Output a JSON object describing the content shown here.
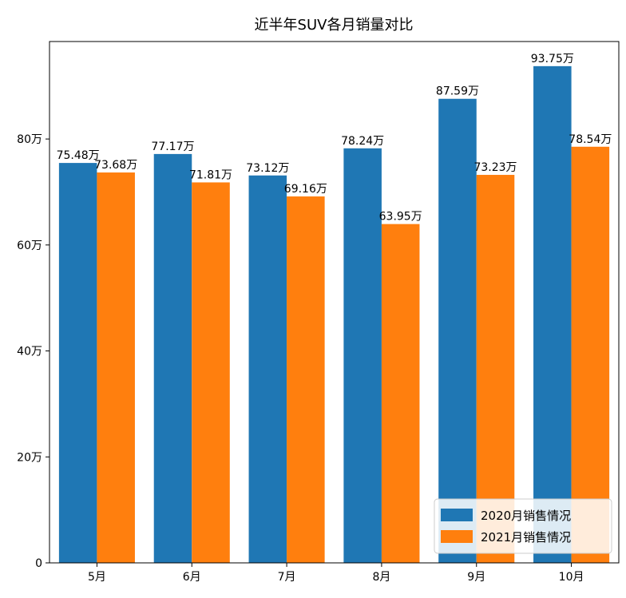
{
  "chart_data": {
    "type": "bar",
    "title": "近半年SUV各月销量对比",
    "categories": [
      "5月",
      "6月",
      "7月",
      "8月",
      "9月",
      "10月"
    ],
    "series": [
      {
        "name": "2020月销售情况",
        "color": "#1f77b4",
        "values": [
          75.48,
          77.17,
          73.12,
          78.24,
          87.59,
          93.75
        ],
        "labels": [
          "75.48万",
          "77.17万",
          "73.12万",
          "78.24万",
          "87.59万",
          "93.75万"
        ]
      },
      {
        "name": "2021月销售情况",
        "color": "#ff7f0e",
        "values": [
          73.68,
          71.81,
          69.16,
          63.95,
          73.23,
          78.54
        ],
        "labels": [
          "73.68万",
          "71.81万",
          "69.16万",
          "63.95万",
          "73.23万",
          "78.54万"
        ]
      }
    ],
    "y_ticks": [
      0,
      20,
      40,
      60,
      80
    ],
    "y_tick_labels": [
      "0",
      "20万",
      "40万",
      "60万",
      "80万"
    ],
    "ylim": [
      0,
      98.4
    ],
    "xlabel": "",
    "ylabel": "",
    "grid": false,
    "legend_position": "lower-right"
  }
}
